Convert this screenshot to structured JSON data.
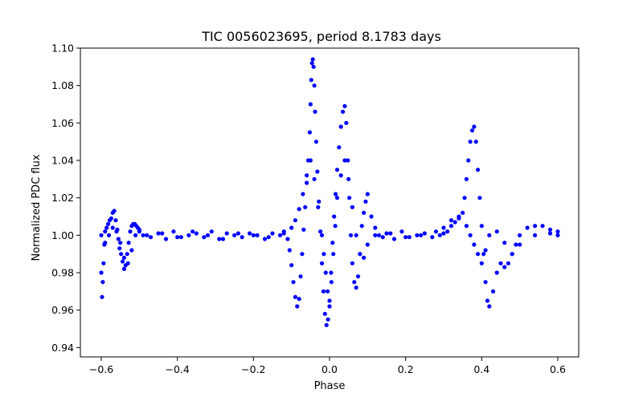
{
  "chart_data": {
    "type": "scatter",
    "title": "TIC 0056023695, period 8.1783 days",
    "xlabel": "Phase",
    "ylabel": "Normalized PDC flux",
    "xlim": [
      -0.655,
      0.655
    ],
    "ylim": [
      0.935,
      1.1
    ],
    "xticks": [
      -0.6,
      -0.4,
      -0.2,
      0.0,
      0.2,
      0.4,
      0.6
    ],
    "xtick_labels": [
      "−0.6",
      "−0.4",
      "−0.2",
      "0.0",
      "0.2",
      "0.4",
      "0.6"
    ],
    "yticks": [
      0.94,
      0.96,
      0.98,
      1.0,
      1.02,
      1.04,
      1.06,
      1.08,
      1.1
    ],
    "ytick_labels": [
      "0.94",
      "0.96",
      "0.98",
      "1.00",
      "1.02",
      "1.04",
      "1.06",
      "1.08",
      "1.10"
    ],
    "grid": false,
    "marker_color": "#0000ff",
    "series": [
      {
        "x": [
          -0.6,
          -0.598,
          -0.596,
          -0.594,
          -0.592,
          -0.59,
          -0.586,
          -0.582,
          -0.578,
          -0.574,
          -0.57,
          -0.566,
          -0.562,
          -0.558,
          -0.555,
          -0.552,
          -0.548,
          -0.544,
          -0.54,
          -0.536,
          -0.532,
          -0.528,
          -0.524,
          -0.52,
          -0.516,
          -0.512,
          -0.508,
          -0.504,
          -0.5,
          -0.49,
          -0.47,
          -0.45,
          -0.43,
          -0.41,
          -0.39,
          -0.37,
          -0.35,
          -0.33,
          -0.31,
          -0.29,
          -0.27,
          -0.25,
          -0.23,
          -0.21,
          -0.19,
          -0.17,
          -0.15,
          -0.13,
          -0.12,
          -0.11,
          -0.105,
          -0.1,
          -0.095,
          -0.09,
          -0.085,
          -0.08,
          -0.076,
          -0.072,
          -0.068,
          -0.064,
          -0.06,
          -0.056,
          -0.052,
          -0.05,
          -0.048,
          -0.046,
          -0.044,
          -0.042,
          -0.04,
          -0.038,
          -0.035,
          -0.032,
          -0.028,
          -0.024,
          -0.02,
          -0.016,
          -0.012,
          -0.008,
          -0.004,
          0.0,
          0.004,
          0.008,
          0.012,
          0.016,
          0.02,
          0.025,
          0.03,
          0.035,
          0.04,
          0.044,
          0.048,
          0.052,
          0.056,
          0.06,
          0.065,
          0.07,
          0.075,
          0.08,
          0.085,
          0.09,
          0.095,
          0.1,
          0.11,
          0.12,
          0.13,
          0.14,
          0.15,
          0.17,
          0.19,
          0.21,
          0.23,
          0.25,
          0.27,
          0.29,
          0.3,
          0.31,
          0.32,
          0.33,
          0.34,
          0.35,
          0.355,
          0.36,
          0.365,
          0.37,
          0.375,
          0.38,
          0.385,
          0.39,
          0.395,
          0.4,
          0.405,
          0.41,
          0.415,
          0.42,
          0.43,
          0.44,
          0.45,
          0.46,
          0.47,
          0.48,
          0.49,
          0.5,
          0.52,
          0.54,
          0.56,
          0.58,
          0.6
        ],
        "y": [
          1.0,
          0.967,
          0.975,
          0.985,
          0.995,
          1.002,
          1.004,
          1.006,
          1.008,
          1.009,
          1.012,
          1.013,
          1.008,
          1.003,
          0.998,
          0.993,
          0.99,
          0.986,
          0.982,
          0.984,
          0.99,
          0.996,
          1.002,
          1.005,
          1.006,
          1.006,
          1.005,
          1.004,
          1.002,
          1.0,
          0.999,
          1.001,
          0.998,
          1.002,
          0.999,
          1.0,
          1.001,
          0.999,
          1.002,
          0.998,
          1.001,
          1.0,
          0.999,
          1.001,
          1.0,
          0.998,
          1.001,
          1.0,
          1.002,
          0.998,
          0.992,
          0.984,
          0.975,
          0.967,
          0.962,
          0.966,
          0.978,
          0.99,
          1.003,
          1.015,
          1.028,
          1.04,
          1.055,
          1.07,
          1.083,
          1.092,
          1.094,
          1.09,
          1.08,
          1.066,
          1.05,
          1.034,
          1.018,
          1.002,
          0.985,
          0.97,
          0.958,
          0.952,
          0.955,
          0.965,
          0.98,
          0.996,
          1.01,
          1.022,
          1.035,
          1.047,
          1.058,
          1.066,
          1.069,
          1.06,
          1.04,
          1.02,
          1.0,
          0.985,
          0.975,
          0.972,
          0.978,
          0.99,
          1.005,
          1.012,
          1.018,
          1.022,
          1.01,
          1.004,
          1.0,
          0.999,
          1.001,
          0.998,
          1.002,
          0.999,
          1.0,
          1.001,
          0.999,
          1.0,
          1.001,
          1.002,
          1.005,
          1.007,
          1.009,
          1.012,
          1.02,
          1.03,
          1.04,
          1.05,
          1.056,
          1.058,
          1.05,
          1.035,
          1.02,
          1.005,
          0.99,
          0.975,
          0.965,
          0.962,
          0.97,
          0.98,
          0.985,
          0.983,
          0.985,
          0.99,
          0.995,
          1.0,
          1.004,
          1.005,
          1.005,
          1.003,
          1.002
        ]
      },
      {
        "x": [
          -0.6,
          -0.59,
          -0.58,
          -0.57,
          -0.56,
          -0.55,
          -0.54,
          -0.53,
          -0.52,
          -0.51,
          -0.5,
          -0.48,
          -0.44,
          -0.4,
          -0.36,
          -0.32,
          -0.28,
          -0.24,
          -0.2,
          -0.16,
          -0.12,
          -0.1,
          -0.09,
          -0.08,
          -0.07,
          -0.06,
          -0.05,
          -0.04,
          -0.03,
          -0.02,
          -0.015,
          -0.01,
          -0.005,
          0.0,
          0.005,
          0.01,
          0.015,
          0.02,
          0.03,
          0.04,
          0.05,
          0.06,
          0.07,
          0.08,
          0.09,
          0.1,
          0.12,
          0.16,
          0.2,
          0.24,
          0.28,
          0.3,
          0.32,
          0.34,
          0.36,
          0.37,
          0.38,
          0.39,
          0.4,
          0.41,
          0.42,
          0.44,
          0.46,
          0.48,
          0.5,
          0.54,
          0.58,
          0.6
        ],
        "y": [
          0.98,
          0.996,
          1.0,
          1.004,
          1.002,
          0.996,
          0.988,
          0.985,
          0.992,
          1.0,
          1.003,
          1.0,
          1.001,
          0.999,
          1.002,
          1.0,
          0.998,
          1.001,
          1.0,
          0.999,
          1.001,
          1.004,
          1.008,
          1.014,
          1.022,
          1.032,
          1.04,
          1.03,
          1.015,
          1.0,
          0.99,
          0.98,
          0.97,
          0.962,
          0.975,
          0.99,
          1.005,
          1.02,
          1.032,
          1.04,
          1.03,
          1.015,
          1.0,
          0.99,
          0.988,
          0.995,
          1.0,
          1.001,
          0.999,
          1.0,
          1.002,
          1.004,
          1.008,
          1.01,
          1.005,
          1.0,
          0.995,
          0.99,
          0.985,
          0.992,
          1.0,
          1.002,
          0.996,
          0.99,
          0.995,
          1.0,
          1.001,
          1.0
        ]
      }
    ]
  }
}
